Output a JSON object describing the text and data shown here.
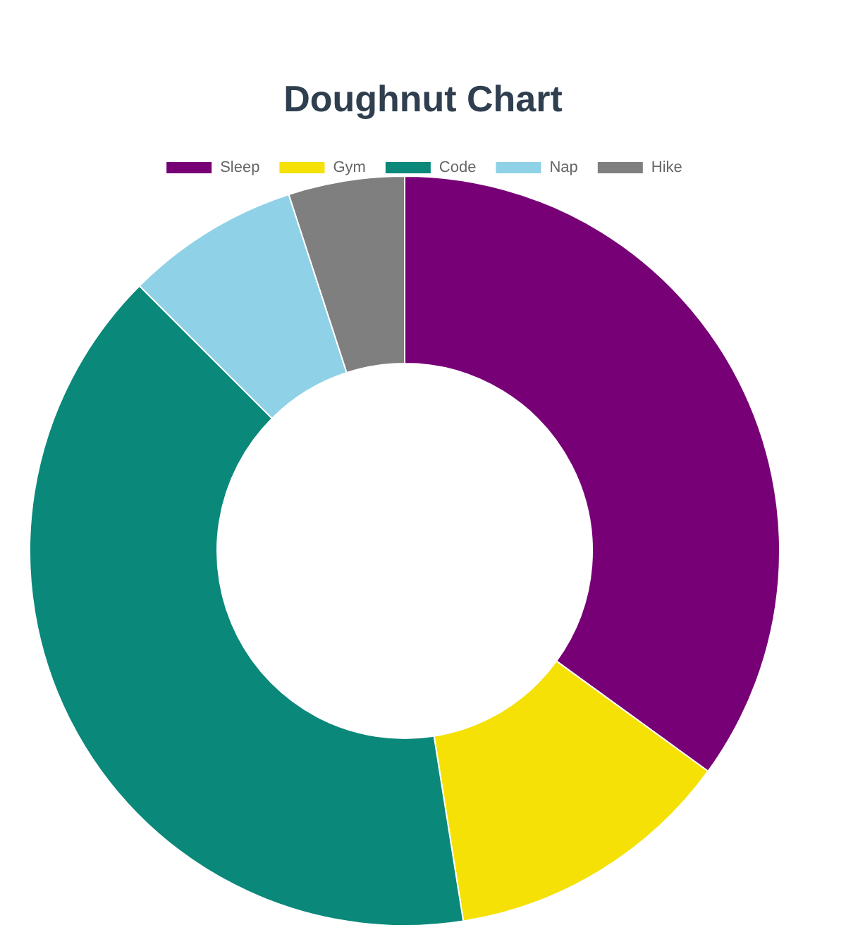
{
  "chart_data": {
    "type": "donut",
    "title": "Doughnut Chart",
    "categories": [
      "Sleep",
      "Gym",
      "Code",
      "Nap",
      "Hike"
    ],
    "values": [
      35,
      12.5,
      40,
      7.5,
      5
    ],
    "colors": [
      "#770077",
      "#f5e105",
      "#0a887a",
      "#8fd1e6",
      "#7f7f7f"
    ],
    "legend": "top"
  }
}
